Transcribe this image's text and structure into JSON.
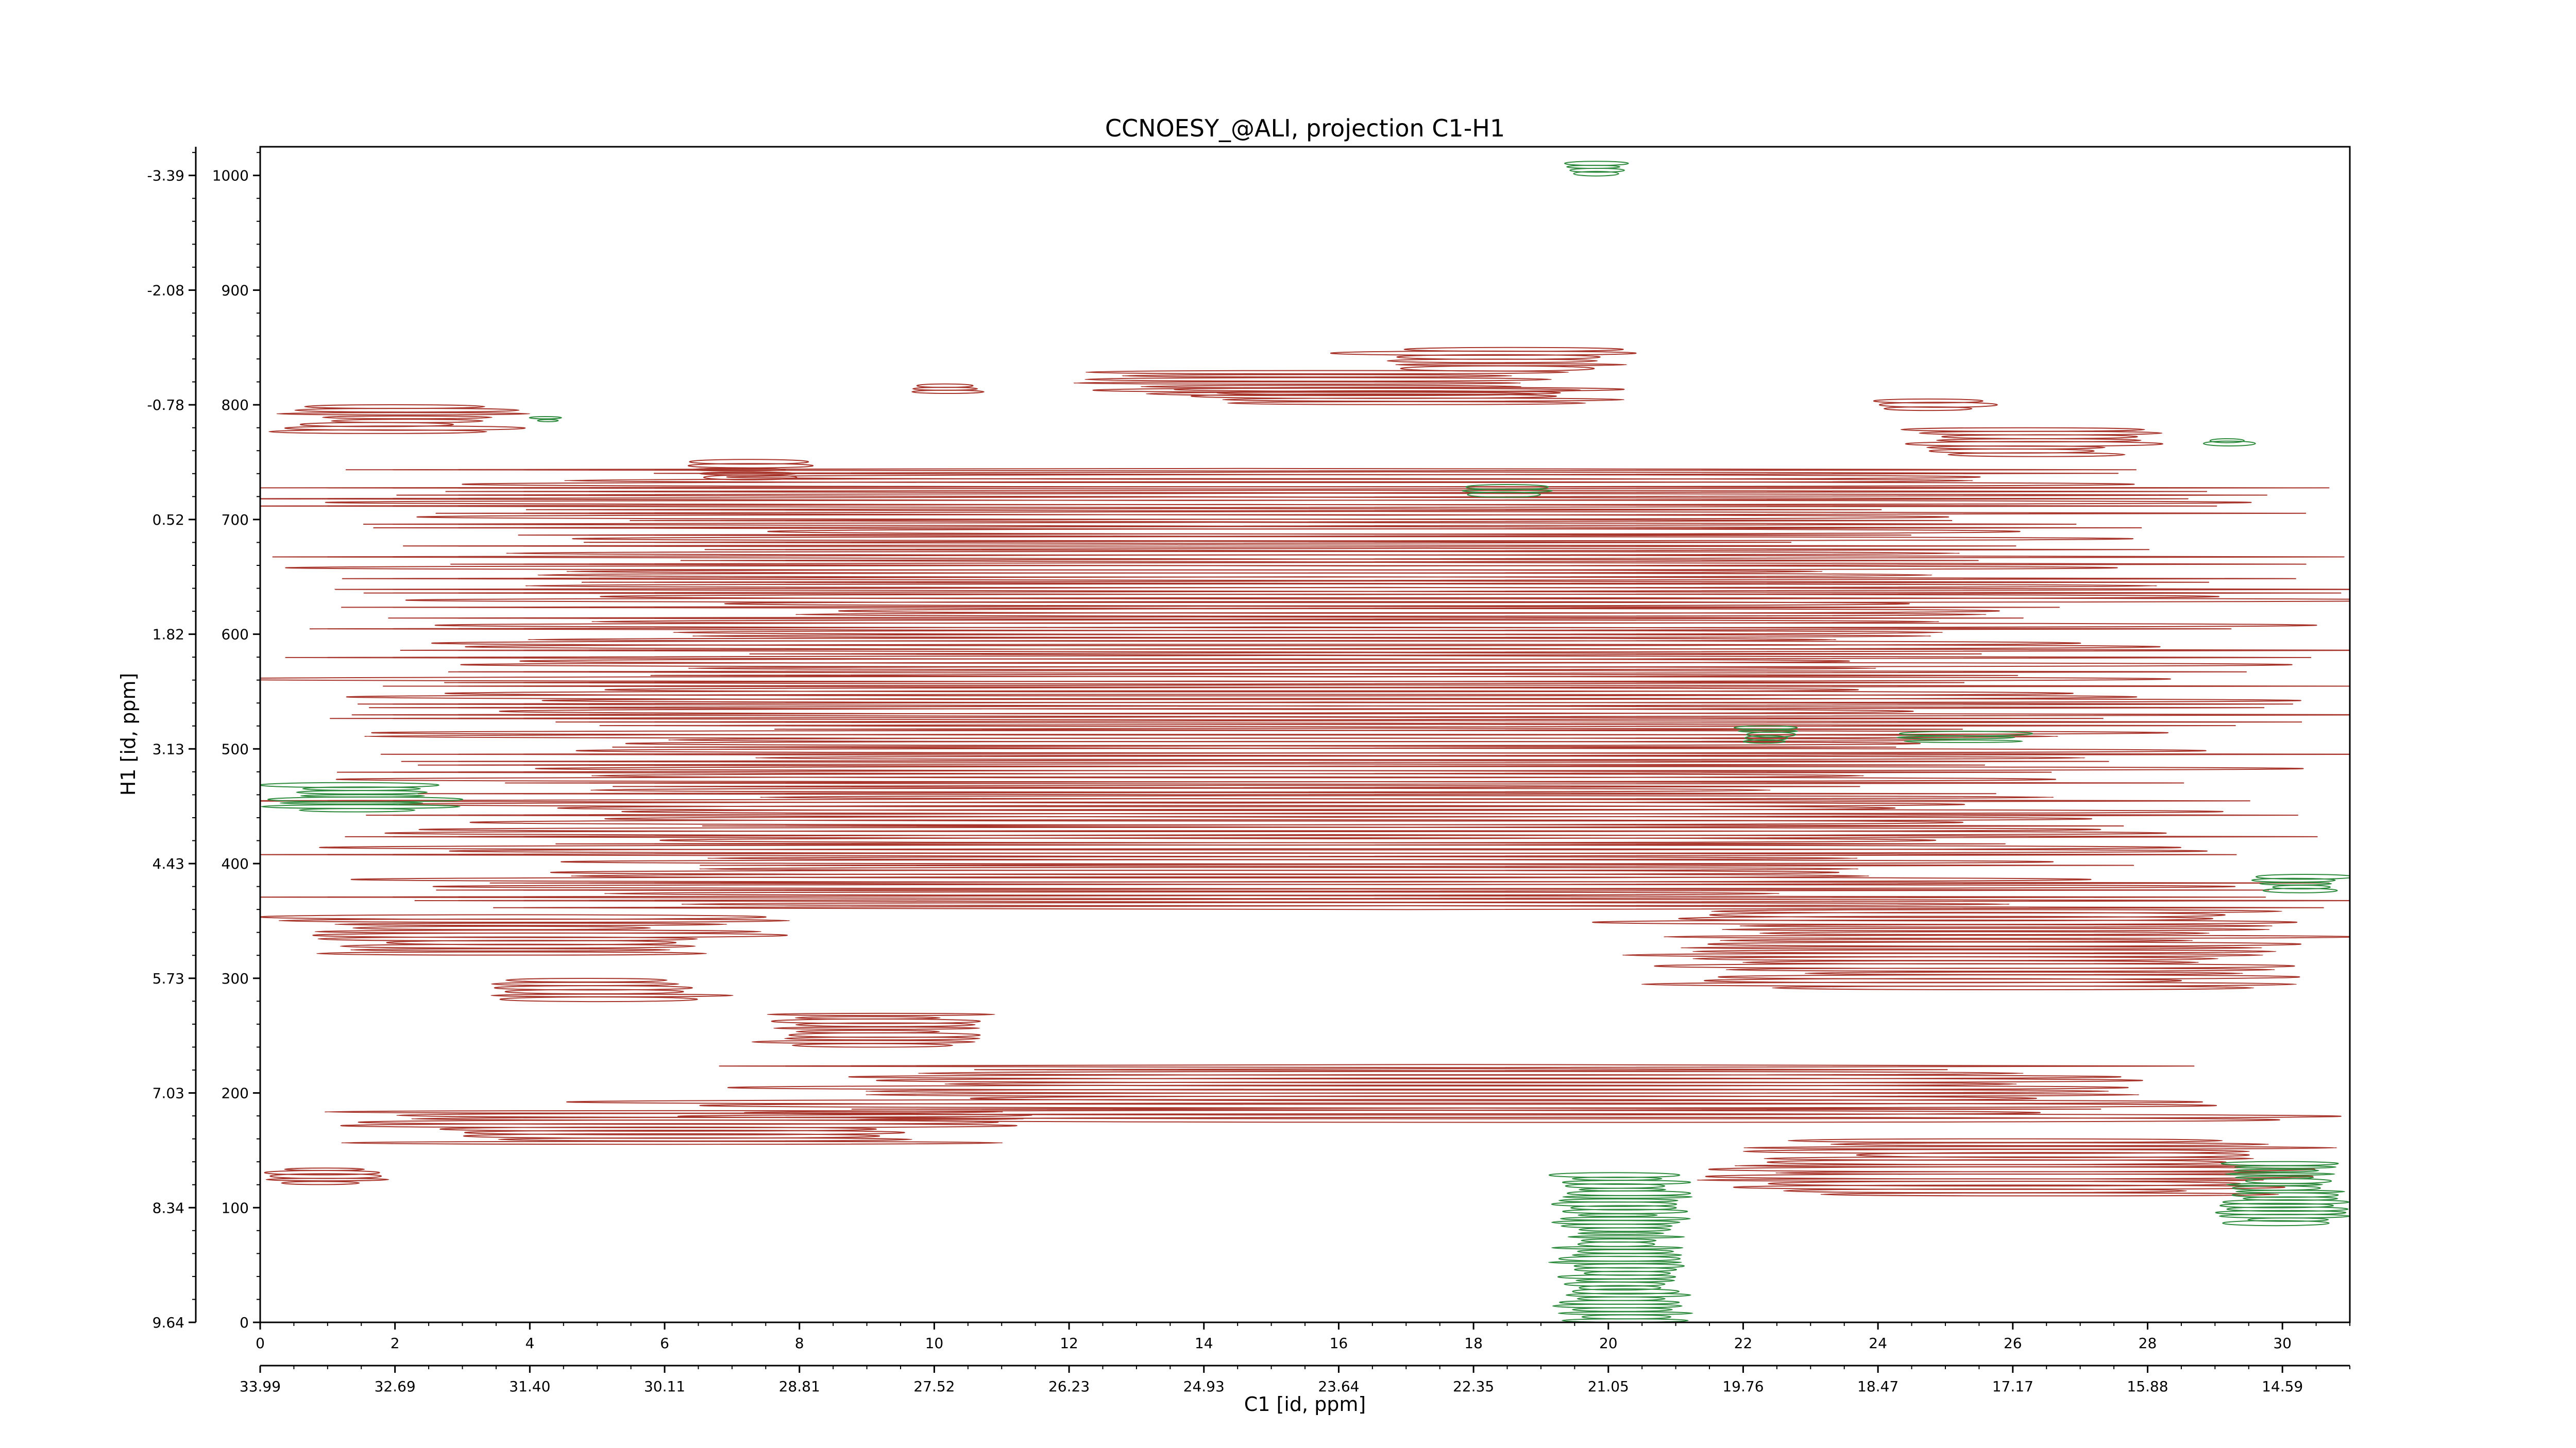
{
  "chart_data": {
    "type": "heatmap",
    "subtype": "2D NMR contour plot",
    "title": "CCNOESY_@ALI, projection C1-H1",
    "xlabel": "C1 [id, ppm]",
    "ylabel": "H1 [id, ppm]",
    "x_index_range": [
      0,
      31
    ],
    "y_index_range": [
      0,
      1025
    ],
    "x_index_ticks": [
      "0",
      "2",
      "4",
      "6",
      "8",
      "10",
      "12",
      "14",
      "16",
      "18",
      "20",
      "22",
      "24",
      "26",
      "28",
      "30"
    ],
    "x_ppm_tick_labels": [
      "33.99",
      "32.69",
      "31.40",
      "30.11",
      "28.81",
      "27.52",
      "26.23",
      "24.93",
      "23.64",
      "22.35",
      "21.05",
      "19.76",
      "18.47",
      "17.17",
      "15.88",
      "14.59"
    ],
    "y_index_ticks": [
      "0",
      "100",
      "200",
      "300",
      "400",
      "500",
      "600",
      "700",
      "800",
      "900",
      "1000"
    ],
    "y_ppm_tick_labels": [
      "9.64",
      "8.34",
      "7.03",
      "5.73",
      "4.43",
      "3.13",
      "1.82",
      "0.52",
      "-0.78",
      "-2.08",
      "-3.39"
    ],
    "grid": false,
    "colors": {
      "positive": "#a8352b",
      "negative": "#2e8b3e"
    },
    "contour_bands": [
      {
        "x": [
          0.0,
          3.9
        ],
        "y": [
          775,
          800
        ],
        "sign": "positive"
      },
      {
        "x": [
          4.0,
          4.5
        ],
        "y": [
          785,
          790
        ],
        "sign": "negative"
      },
      {
        "x": [
          6.2,
          8.2
        ],
        "y": [
          735,
          752
        ],
        "sign": "positive"
      },
      {
        "x": [
          9.5,
          10.8
        ],
        "y": [
          810,
          818
        ],
        "sign": "positive"
      },
      {
        "x": [
          11.2,
          20.0
        ],
        "y": [
          808,
          830
        ],
        "sign": "positive"
      },
      {
        "x": [
          13.0,
          21.0
        ],
        "y": [
          800,
          815
        ],
        "sign": "positive"
      },
      {
        "x": [
          16.0,
          20.8
        ],
        "y": [
          830,
          850
        ],
        "sign": "positive"
      },
      {
        "x": [
          23.8,
          25.8
        ],
        "y": [
          795,
          805
        ],
        "sign": "positive"
      },
      {
        "x": [
          24.2,
          28.2
        ],
        "y": [
          755,
          780
        ],
        "sign": "positive"
      },
      {
        "x": [
          28.8,
          29.6
        ],
        "y": [
          765,
          770
        ],
        "sign": "negative"
      },
      {
        "x": [
          0.0,
          31.0
        ],
        "y": [
          650,
          745
        ],
        "sign": "positive"
      },
      {
        "x": [
          0.0,
          31.0
        ],
        "y": [
          400,
          650
        ],
        "sign": "positive"
      },
      {
        "x": [
          0.0,
          31.0
        ],
        "y": [
          360,
          400
        ],
        "sign": "positive"
      },
      {
        "x": [
          20.2,
          31.0
        ],
        "y": [
          290,
          360
        ],
        "sign": "positive"
      },
      {
        "x": [
          0.0,
          7.8
        ],
        "y": [
          320,
          355
        ],
        "sign": "positive"
      },
      {
        "x": [
          3.0,
          7.0
        ],
        "y": [
          280,
          300
        ],
        "sign": "positive"
      },
      {
        "x": [
          7.3,
          11.0
        ],
        "y": [
          240,
          270
        ],
        "sign": "positive"
      },
      {
        "x": [
          5.2,
          31.0
        ],
        "y": [
          175,
          225
        ],
        "sign": "positive"
      },
      {
        "x": [
          1.2,
          11.5
        ],
        "y": [
          155,
          185
        ],
        "sign": "positive"
      },
      {
        "x": [
          0.0,
          2.0
        ],
        "y": [
          120,
          135
        ],
        "sign": "positive"
      },
      {
        "x": [
          19.2,
          21.2
        ],
        "y": [
          0,
          130
        ],
        "sign": "negative"
      },
      {
        "x": [
          21.0,
          31.0
        ],
        "y": [
          110,
          160
        ],
        "sign": "positive"
      },
      {
        "x": [
          29.0,
          31.0
        ],
        "y": [
          85,
          140
        ],
        "sign": "negative"
      },
      {
        "x": [
          19.3,
          20.3
        ],
        "y": [
          1000,
          1012
        ],
        "sign": "negative"
      },
      {
        "x": [
          21.8,
          22.9
        ],
        "y": [
          505,
          520
        ],
        "sign": "negative"
      },
      {
        "x": [
          23.8,
          26.5
        ],
        "y": [
          505,
          515
        ],
        "sign": "negative"
      },
      {
        "x": [
          0.0,
          3.0
        ],
        "y": [
          445,
          470
        ],
        "sign": "negative"
      },
      {
        "x": [
          29.5,
          31.0
        ],
        "y": [
          375,
          390
        ],
        "sign": "negative"
      },
      {
        "x": [
          17.6,
          19.3
        ],
        "y": [
          720,
          730
        ],
        "sign": "negative"
      }
    ]
  }
}
